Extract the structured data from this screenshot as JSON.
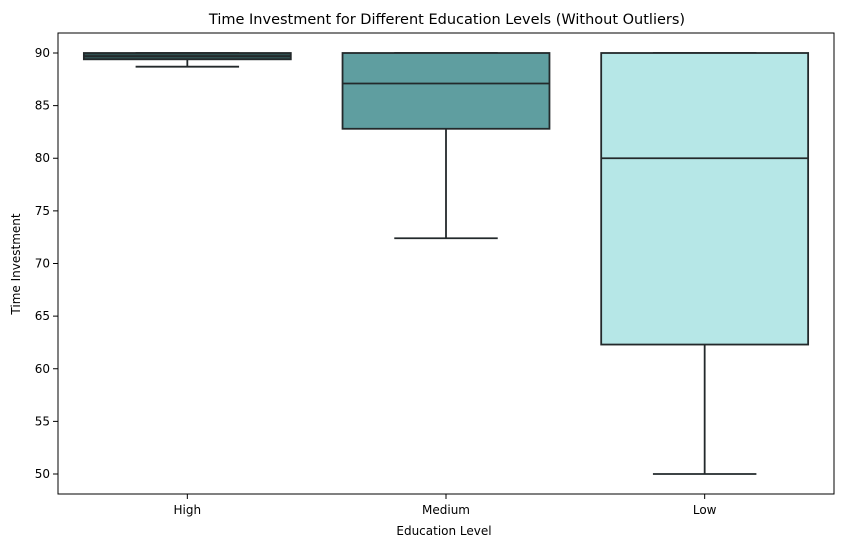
{
  "chart_data": {
    "type": "box",
    "title": "Time Investment for Different Education Levels (Without Outliers)",
    "xlabel": "Education Level",
    "ylabel": "Time Investment",
    "ylim": [
      48.1,
      91.9
    ],
    "yticks": [
      50,
      55,
      60,
      65,
      70,
      75,
      80,
      85,
      90
    ],
    "grid": false,
    "categories": [
      "High",
      "Medium",
      "Low"
    ],
    "boxes": [
      {
        "category": "High",
        "whislo": 88.7,
        "q1": 89.4,
        "med": 89.7,
        "q3": 90.0,
        "whishi": 90.0,
        "color": "#2f4f4f"
      },
      {
        "category": "Medium",
        "whislo": 72.4,
        "q1": 82.8,
        "med": 87.1,
        "q3": 90.0,
        "whishi": 90.0,
        "color": "#5f9ea0"
      },
      {
        "category": "Low",
        "whislo": 50.0,
        "q1": 62.3,
        "med": 80.0,
        "q3": 90.0,
        "whishi": 90.0,
        "color": "#b6e7e7"
      }
    ]
  }
}
